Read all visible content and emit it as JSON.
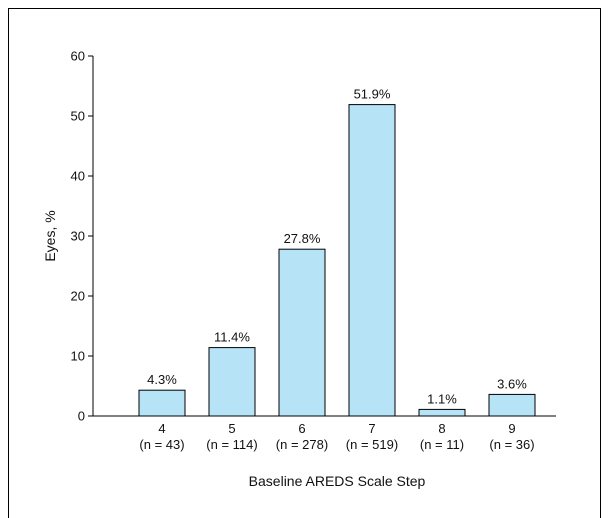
{
  "chart_data": {
    "type": "bar",
    "title": "",
    "xlabel": "Baseline AREDS Scale Step",
    "ylabel": "Eyes, %",
    "ylim": [
      0,
      60
    ],
    "yticks": [
      0,
      10,
      20,
      30,
      40,
      50,
      60
    ],
    "categories": [
      "4",
      "5",
      "6",
      "7",
      "8",
      "9"
    ],
    "sublabels": [
      "(n = 43)",
      "(n = 114)",
      "(n = 278)",
      "(n = 519)",
      "(n = 11)",
      "(n = 36)"
    ],
    "values": [
      4.3,
      11.4,
      27.8,
      51.9,
      1.1,
      3.6
    ],
    "data_labels": [
      "4.3%",
      "11.4%",
      "27.8%",
      "51.9%",
      "1.1%",
      "3.6%"
    ],
    "bar_color": "#b7e3f7",
    "grid": false
  }
}
